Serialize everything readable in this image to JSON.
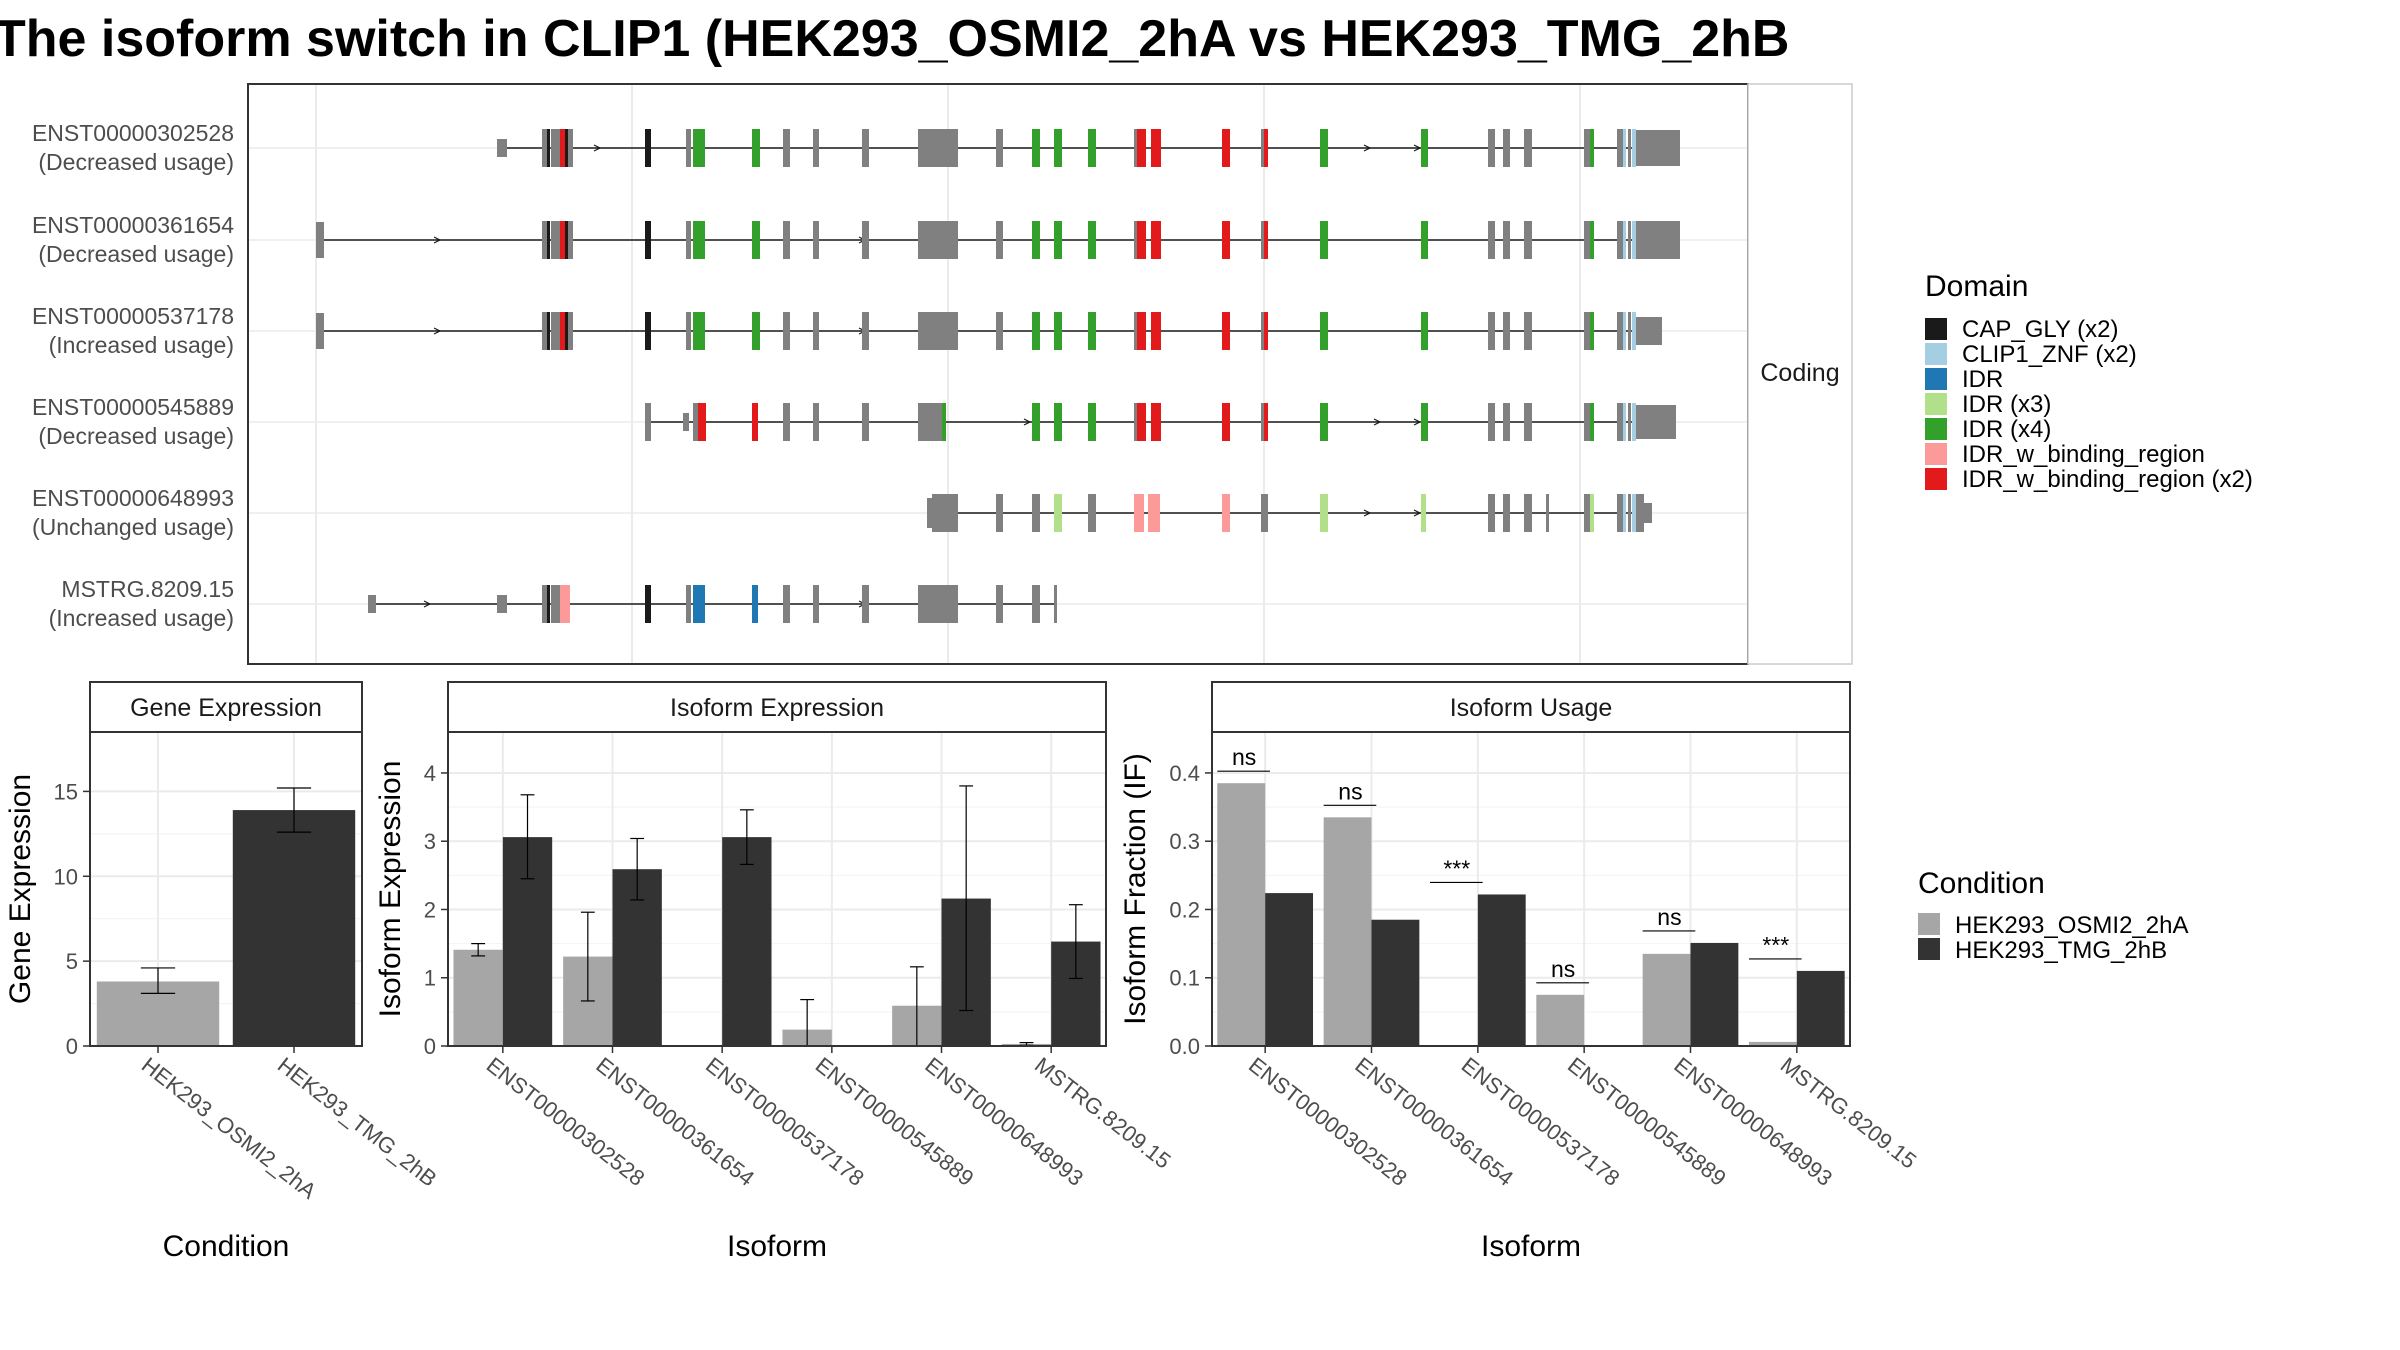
{
  "title": "The isoform switch in CLIP1 (HEK293_OSMI2_2hA vs HEK293_TMG_2hB",
  "colors": {
    "cond_a": "#a6a6a6",
    "cond_b": "#333333",
    "intron": "#1a1a1a",
    "exon": "#808080",
    "panel_border": "#333333",
    "strip_fill": "#ffffff",
    "grid": "#ebebeb",
    "domain": {
      "CAP_GLY (x2)": "#1a1a1a",
      "CLIP1_ZNF (x2)": "#a6cee3",
      "IDR": "#1f78b4",
      "IDR (x3)": "#b2df8a",
      "IDR (x4)": "#33a02c",
      "IDR_w_binding_region": "#fb9a99",
      "IDR_w_binding_region (x2)": "#e31a1c"
    }
  },
  "structure": {
    "strip_label": "Coding",
    "transcripts": [
      {
        "id": "ENST00000302528",
        "usage": "(Decreased usage)"
      },
      {
        "id": "ENST00000361654",
        "usage": "(Decreased usage)"
      },
      {
        "id": "ENST00000537178",
        "usage": "(Increased usage)"
      },
      {
        "id": "ENST00000545889",
        "usage": "(Decreased usage)"
      },
      {
        "id": "ENST00000648993",
        "usage": "(Unchanged usage)"
      },
      {
        "id": "MSTRG.8209.15",
        "usage": "(Increased usage)"
      }
    ]
  },
  "legend_domain": {
    "title": "Domain",
    "items": [
      "CAP_GLY (x2)",
      "CLIP1_ZNF (x2)",
      "IDR",
      "IDR (x3)",
      "IDR (x4)",
      "IDR_w_binding_region",
      "IDR_w_binding_region (x2)"
    ]
  },
  "legend_condition": {
    "title": "Condition",
    "items": [
      "HEK293_OSMI2_2hA",
      "HEK293_TMG_2hB"
    ]
  },
  "chart_data": [
    {
      "type": "bar",
      "title": "Gene Expression",
      "xlabel": "Condition",
      "ylabel": "Gene Expression",
      "ylim": [
        0,
        18.5
      ],
      "yticks": [
        0,
        5,
        10,
        15
      ],
      "categories": [
        "HEK293_OSMI2_2hA",
        "HEK293_TMG_2hB"
      ],
      "values": [
        3.8,
        13.9
      ],
      "error_low": [
        3.1,
        12.6
      ],
      "error_high": [
        4.6,
        15.2
      ]
    },
    {
      "type": "bar",
      "title": "Isoform Expression",
      "xlabel": "Isoform",
      "ylabel": "Isoform Expression",
      "ylim": [
        0,
        4.6
      ],
      "yticks": [
        0,
        1,
        2,
        3,
        4
      ],
      "categories": [
        "ENST00000302528",
        "ENST00000361654",
        "ENST00000537178",
        "ENST00000545889",
        "ENST00000648993",
        "MSTRG.8209.15"
      ],
      "series": [
        {
          "name": "HEK293_OSMI2_2hA",
          "values": [
            1.41,
            1.31,
            0.0,
            0.24,
            0.59,
            0.03
          ],
          "error_low": [
            1.32,
            0.66,
            0.0,
            0.0,
            0.0,
            0.01
          ],
          "error_high": [
            1.5,
            1.96,
            0.0,
            0.68,
            1.16,
            0.05
          ]
        },
        {
          "name": "HEK293_TMG_2hB",
          "values": [
            3.06,
            2.59,
            3.06,
            0.0,
            2.16,
            1.53
          ],
          "error_low": [
            2.45,
            2.14,
            2.66,
            0.0,
            0.52,
            0.99
          ],
          "error_high": [
            3.68,
            3.04,
            3.46,
            0.0,
            3.81,
            2.07
          ]
        }
      ]
    },
    {
      "type": "bar",
      "title": "Isoform Usage",
      "xlabel": "Isoform",
      "ylabel": "Isoform Fraction (IF)",
      "ylim": [
        0,
        0.46
      ],
      "yticks": [
        "0.0",
        "0.1",
        "0.2",
        "0.3",
        "0.4"
      ],
      "categories": [
        "ENST00000302528",
        "ENST00000361654",
        "ENST00000537178",
        "ENST00000545889",
        "ENST00000648993",
        "MSTRG.8209.15"
      ],
      "series": [
        {
          "name": "HEK293_OSMI2_2hA",
          "values": [
            0.385,
            0.335,
            0.0,
            0.075,
            0.135,
            0.006
          ]
        },
        {
          "name": "HEK293_TMG_2hB",
          "values": [
            0.224,
            0.185,
            0.222,
            0.0,
            0.151,
            0.11
          ]
        }
      ],
      "significance": [
        "ns",
        "ns",
        "***",
        "ns",
        "ns",
        "***"
      ]
    }
  ]
}
